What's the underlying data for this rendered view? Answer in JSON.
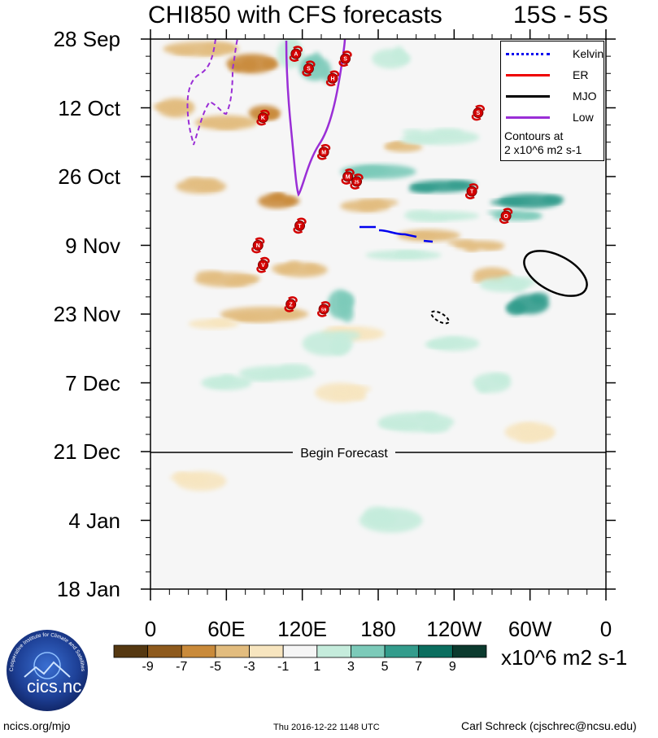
{
  "header": {
    "title": "CHI850 with CFS forecasts",
    "region": "15S - 5S"
  },
  "chart_data": {
    "type": "heatmap",
    "description_type": "Hovmoller diagram (time vs longitude)",
    "title": "CHI850 with CFS forecasts",
    "region": "15S - 5S",
    "variable": "CHI850",
    "units": "x10^6 m2 s-1",
    "x_axis": {
      "ticks": [
        "0",
        "60E",
        "120E",
        "180",
        "120W",
        "60W",
        "0"
      ],
      "range_deg_east": [
        0,
        360
      ]
    },
    "y_axis": {
      "ticks": [
        "28 Sep",
        "12 Oct",
        "26 Oct",
        "9 Nov",
        "23 Nov",
        "7 Dec",
        "21 Dec",
        "4 Jan",
        "18 Jan"
      ],
      "range_days": [
        0,
        112
      ],
      "direction": "time increases downward"
    },
    "colorbar": {
      "labels": [
        "-9",
        "-7",
        "-5",
        "-3",
        "-1",
        "1",
        "3",
        "5",
        "7",
        "9"
      ],
      "colors": [
        "#553811",
        "#8e5a1d",
        "#c98a3a",
        "#e2bc7e",
        "#f7e5bf",
        "#f5f5f5",
        "#c5ecdc",
        "#7ccab9",
        "#339c8c",
        "#0b6e5f",
        "#0b3a2e"
      ]
    },
    "forecast_line": {
      "label": "Begin Forecast",
      "date": "21 Dec"
    },
    "legend": {
      "items": [
        {
          "name": "Kelvin",
          "color": "#0000ee"
        },
        {
          "name": "ER",
          "color": "#ee0000"
        },
        {
          "name": "MJO",
          "color": "#000000"
        },
        {
          "name": "Low",
          "color": "#9a2ed6"
        }
      ],
      "note_line1": "Contours at",
      "note_line2": "2 x10^6 m2 s-1"
    },
    "storm_markers": [
      {
        "label": "A",
        "lon": 115,
        "day": 3
      },
      {
        "label": "S",
        "lon": 154,
        "day": 4
      },
      {
        "label": "S",
        "lon": 125,
        "day": 6
      },
      {
        "label": "H",
        "lon": 144,
        "day": 8
      },
      {
        "label": "S",
        "lon": 259,
        "day": 15
      },
      {
        "label": "K",
        "lon": 89,
        "day": 16
      },
      {
        "label": "M",
        "lon": 137,
        "day": 23
      },
      {
        "label": "M",
        "lon": 156,
        "day": 28
      },
      {
        "label": "25",
        "lon": 163,
        "day": 29
      },
      {
        "label": "T",
        "lon": 254,
        "day": 31
      },
      {
        "label": "O",
        "lon": 281,
        "day": 36
      },
      {
        "label": "T",
        "lon": 118,
        "day": 38
      },
      {
        "label": "N",
        "lon": 85,
        "day": 42
      },
      {
        "label": "V",
        "lon": 89,
        "day": 46
      },
      {
        "label": "Z",
        "lon": 111,
        "day": 54
      },
      {
        "label": "59",
        "lon": 137,
        "day": 55
      }
    ]
  },
  "footer": {
    "left": "ncics.org/mjo",
    "center": "Thu 2016-12-22 1148 UTC",
    "right": "Carl Schreck (cjschrec@ncsu.edu)",
    "logo_text": "cics.nc",
    "logo_ring_text": "Cooperative Institute for Climate and Satellites"
  }
}
